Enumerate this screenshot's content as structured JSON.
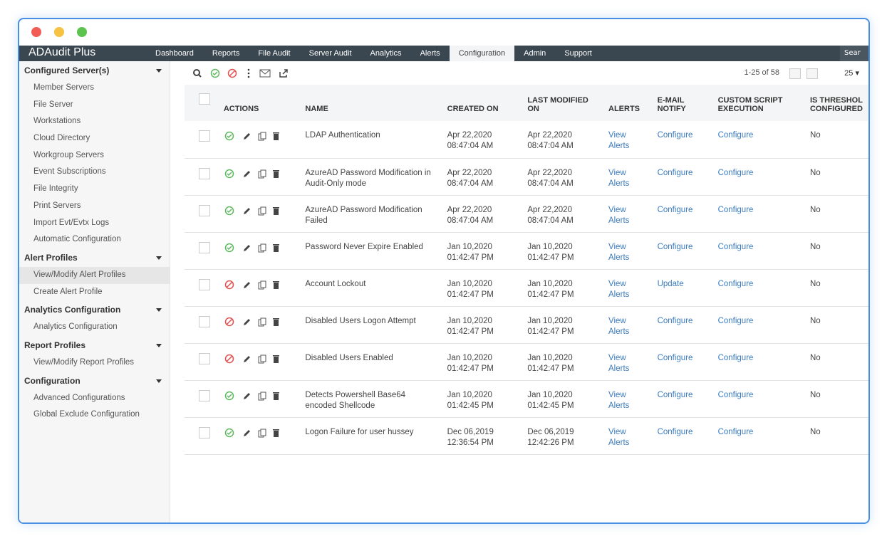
{
  "window": {
    "logo": "ADAudit Plus",
    "tabs": [
      "Dashboard",
      "Reports",
      "File Audit",
      "Server Audit",
      "Analytics",
      "Alerts",
      "Configuration",
      "Admin",
      "Support"
    ],
    "search": "Sear"
  },
  "sidebar": [
    {
      "title": "Configured Server(s)",
      "items": [
        "Member Servers",
        "File Server",
        "Workstations",
        "Cloud Directory",
        "Workgroup Servers",
        "Event Subscriptions",
        "File Integrity",
        "Print Servers",
        "Import Evt/Evtx Logs",
        "Automatic Configuration"
      ]
    },
    {
      "title": "Alert Profiles",
      "items": [
        "View/Modify Alert Profiles",
        "Create Alert Profile"
      ]
    },
    {
      "title": "Analytics Configuration",
      "items": [
        "Analytics Configuration"
      ]
    },
    {
      "title": "Report Profiles",
      "items": [
        "View/Modify Report Profiles"
      ]
    },
    {
      "title": "Configuration",
      "items": [
        "Advanced Configurations",
        "Global Exclude Configuration"
      ]
    }
  ],
  "toolbar": {
    "range": "1-25 of 58",
    "page_size": "25"
  },
  "table": {
    "headers": [
      "ACTIONS",
      "NAME",
      "CREATED ON",
      "LAST MODIFIED ON",
      "ALERTS",
      "E-MAIL NOTIFY",
      "CUSTOM SCRIPT EXECUTION",
      "IS THRESHOL CONFIGURED"
    ],
    "rows": [
      {
        "enabled": true,
        "name": "LDAP Authentication",
        "created": [
          "Apr 22,2020",
          "08:47:04 AM"
        ],
        "modified": [
          "Apr 22,2020",
          "08:47:04 AM"
        ],
        "alerts": "View Alerts",
        "email": "Configure",
        "script": "Configure",
        "threshold": "No"
      },
      {
        "enabled": true,
        "name": "AzureAD Password Modification in Audit-Only mode",
        "created": [
          "Apr 22,2020",
          "08:47:04 AM"
        ],
        "modified": [
          "Apr 22,2020",
          "08:47:04 AM"
        ],
        "alerts": "View Alerts",
        "email": "Configure",
        "script": "Configure",
        "threshold": "No"
      },
      {
        "enabled": true,
        "name": "AzureAD Password Modification Failed",
        "created": [
          "Apr 22,2020",
          "08:47:04 AM"
        ],
        "modified": [
          "Apr 22,2020",
          "08:47:04 AM"
        ],
        "alerts": "View Alerts",
        "email": "Configure",
        "script": "Configure",
        "threshold": "No"
      },
      {
        "enabled": true,
        "name": "Password Never Expire Enabled",
        "created": [
          "Jan 10,2020",
          "01:42:47 PM"
        ],
        "modified": [
          "Jan 10,2020",
          "01:42:47 PM"
        ],
        "alerts": "View Alerts",
        "email": "Configure",
        "script": "Configure",
        "threshold": "No"
      },
      {
        "enabled": false,
        "name": "Account Lockout",
        "created": [
          "Jan 10,2020",
          "01:42:47 PM"
        ],
        "modified": [
          "Jan 10,2020",
          "01:42:47 PM"
        ],
        "alerts": "View Alerts",
        "email": "Update",
        "script": "Configure",
        "threshold": "No"
      },
      {
        "enabled": false,
        "name": "Disabled Users Logon Attempt",
        "created": [
          "Jan 10,2020",
          "01:42:47 PM"
        ],
        "modified": [
          "Jan 10,2020",
          "01:42:47 PM"
        ],
        "alerts": "View Alerts",
        "email": "Configure",
        "script": "Configure",
        "threshold": "No"
      },
      {
        "enabled": false,
        "name": "Disabled Users Enabled",
        "created": [
          "Jan 10,2020",
          "01:42:47 PM"
        ],
        "modified": [
          "Jan 10,2020",
          "01:42:47 PM"
        ],
        "alerts": "View Alerts",
        "email": "Configure",
        "script": "Configure",
        "threshold": "No"
      },
      {
        "enabled": true,
        "name": "Detects Powershell Base64 encoded Shellcode",
        "created": [
          "Jan 10,2020",
          "01:42:45 PM"
        ],
        "modified": [
          "Jan 10,2020",
          "01:42:45 PM"
        ],
        "alerts": "View Alerts",
        "email": "Configure",
        "script": "Configure",
        "threshold": "No"
      },
      {
        "enabled": true,
        "name": "Logon Failure for user hussey",
        "created": [
          "Dec 06,2019",
          "12:36:54 PM"
        ],
        "modified": [
          "Dec 06,2019",
          "12:42:26 PM"
        ],
        "alerts": "View Alerts",
        "email": "Configure",
        "script": "Configure",
        "threshold": "No"
      }
    ]
  }
}
